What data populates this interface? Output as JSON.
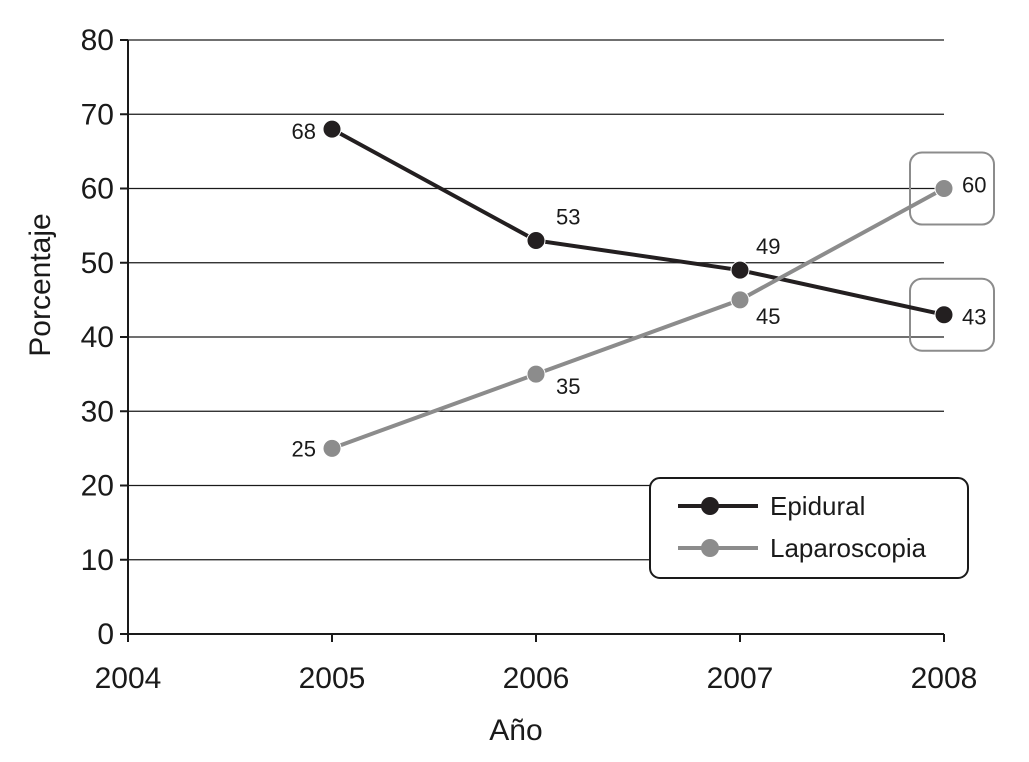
{
  "chart_data": {
    "type": "line",
    "xlabel": "Año",
    "ylabel": "Porcentaje",
    "x": [
      2005,
      2006,
      2007,
      2008
    ],
    "xlim": [
      2004,
      2008
    ],
    "ylim": [
      0,
      80
    ],
    "xticks": [
      2004,
      2005,
      2006,
      2007,
      2008
    ],
    "yticks": [
      0,
      10,
      20,
      30,
      40,
      50,
      60,
      70,
      80
    ],
    "grid": "horizontal",
    "legend_position": "bottom-right",
    "series": [
      {
        "name": "Epidural",
        "values": [
          68,
          53,
          49,
          43
        ],
        "color": "#231f20"
      },
      {
        "name": "Laparoscopia",
        "values": [
          25,
          35,
          45,
          60
        ],
        "color": "#8c8c8c"
      }
    ],
    "highlighted_year": 2008
  }
}
